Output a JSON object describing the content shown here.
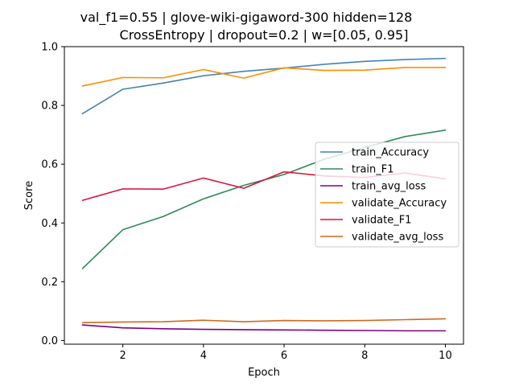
{
  "chart_data": {
    "type": "line",
    "title_lines": [
      "val_f1=0.55 | glove-wiki-gigaword-300  hidden=128",
      "CrossEntropy | dropout=0.2 | w=[0.05, 0.95]"
    ],
    "xlabel": "Epoch",
    "ylabel": "Score",
    "xlim": [
      0.55,
      10.45
    ],
    "ylim": [
      -0.0125,
      1.0
    ],
    "x_ticks": [
      2,
      4,
      6,
      8,
      10
    ],
    "y_ticks": [
      0.0,
      0.2,
      0.4,
      0.6,
      0.8,
      1.0
    ],
    "x_tick_labels": [
      "2",
      "4",
      "6",
      "8",
      "10"
    ],
    "y_tick_labels": [
      "0.0",
      "0.2",
      "0.4",
      "0.6",
      "0.8",
      "1.0"
    ],
    "grid": false,
    "legend_position": "center-right",
    "x": [
      1,
      2,
      3,
      4,
      5,
      6,
      7,
      8,
      9,
      10
    ],
    "series": [
      {
        "name": "train_Accuracy",
        "color": "#4682b4",
        "values": [
          0.772,
          0.855,
          0.876,
          0.901,
          0.916,
          0.927,
          0.94,
          0.95,
          0.956,
          0.96
        ]
      },
      {
        "name": "train_F1",
        "color": "#2e8b57",
        "values": [
          0.245,
          0.377,
          0.422,
          0.482,
          0.528,
          0.565,
          0.617,
          0.657,
          0.694,
          0.716
        ]
      },
      {
        "name": "train_avg_loss",
        "color": "#800080",
        "values": [
          0.053,
          0.043,
          0.04,
          0.038,
          0.037,
          0.036,
          0.035,
          0.034,
          0.033,
          0.033
        ]
      },
      {
        "name": "validate_Accuracy",
        "color": "#ff8c00",
        "values": [
          0.866,
          0.895,
          0.894,
          0.922,
          0.893,
          0.928,
          0.919,
          0.92,
          0.929,
          0.929
        ]
      },
      {
        "name": "validate_F1",
        "color": "#dc143c",
        "values": [
          0.477,
          0.516,
          0.515,
          0.553,
          0.518,
          0.574,
          0.56,
          0.555,
          0.57,
          0.55
        ]
      },
      {
        "name": "validate_avg_loss",
        "color": "#d2691e",
        "values": [
          0.061,
          0.063,
          0.064,
          0.069,
          0.064,
          0.068,
          0.067,
          0.068,
          0.071,
          0.074
        ]
      }
    ]
  }
}
